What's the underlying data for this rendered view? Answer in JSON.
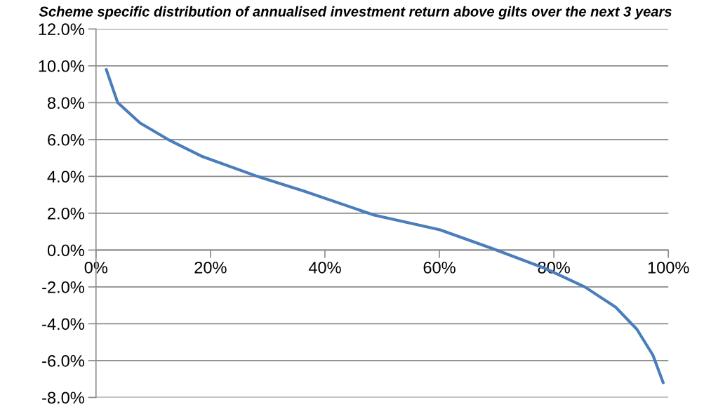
{
  "chart_data": {
    "type": "line",
    "title": "Scheme specific distribution of annualised investment return above gilts over the next 3 years",
    "x": [
      1.8,
      3.8,
      7.7,
      12.6,
      18.4,
      28.2,
      36.3,
      48.6,
      60.1,
      69.1,
      78.5,
      85.4,
      90.8,
      94.5,
      97.3,
      99.1
    ],
    "series": [
      {
        "color": "#4a7ebb",
        "values": [
          9.8,
          8.0,
          6.9,
          6.0,
          5.1,
          4.0,
          3.2,
          1.9,
          1.1,
          0.1,
          -1.0,
          -2.0,
          -3.1,
          -4.3,
          -5.7,
          -7.2
        ]
      }
    ],
    "xlim": [
      0,
      100
    ],
    "ylim": [
      -8,
      12
    ],
    "xticks": [
      {
        "value": 0,
        "label": "0%"
      },
      {
        "value": 20,
        "label": "20%"
      },
      {
        "value": 40,
        "label": "40%"
      },
      {
        "value": 60,
        "label": "60%"
      },
      {
        "value": 80,
        "label": "80%"
      },
      {
        "value": 100,
        "label": "100%"
      }
    ],
    "yticks": [
      {
        "value": -8,
        "label": "-8.0%"
      },
      {
        "value": -6,
        "label": "-6.0%"
      },
      {
        "value": -4,
        "label": "-4.0%"
      },
      {
        "value": -2,
        "label": "-2.0%"
      },
      {
        "value": 0,
        "label": "0.0%"
      },
      {
        "value": 2,
        "label": "2.0%"
      },
      {
        "value": 4,
        "label": "4.0%"
      },
      {
        "value": 6,
        "label": "6.0%"
      },
      {
        "value": 8,
        "label": "8.0%"
      },
      {
        "value": 10,
        "label": "10.0%"
      },
      {
        "value": 12,
        "label": "12.0%"
      }
    ],
    "grid": "y",
    "legend": false,
    "marker": "none",
    "line_style": "solid"
  }
}
